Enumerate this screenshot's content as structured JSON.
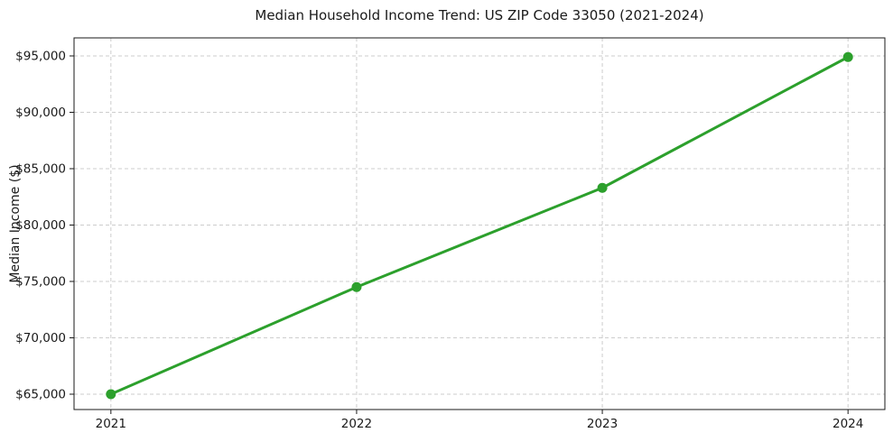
{
  "chart_data": {
    "type": "line",
    "title": "Median Household Income Trend: US ZIP Code 33050 (2021-2024)",
    "xlabel": "",
    "ylabel": "Median Income ($)",
    "x": [
      2021,
      2022,
      2023,
      2024
    ],
    "xtick_labels": [
      "2021",
      "2022",
      "2023",
      "2024"
    ],
    "yticks": [
      65000,
      70000,
      75000,
      80000,
      85000,
      90000,
      95000
    ],
    "ytick_labels": [
      "$65,000",
      "$70,000",
      "$75,000",
      "$80,000",
      "$85,000",
      "$90,000",
      "$95,000"
    ],
    "series": [
      {
        "values": [
          65000,
          74500,
          83300,
          94900
        ]
      }
    ],
    "xlim": [
      2020.85,
      2024.15
    ],
    "ylim": [
      63640,
      96600
    ],
    "grid": true,
    "grid_style": "dashed",
    "grid_color": "#cdcdcd",
    "line_color": "#2ca02c",
    "marker": "circle",
    "marker_color": "#2ca02c",
    "frame_color": "#1a1a1a",
    "background_color": "#ffffff",
    "legend": false
  }
}
